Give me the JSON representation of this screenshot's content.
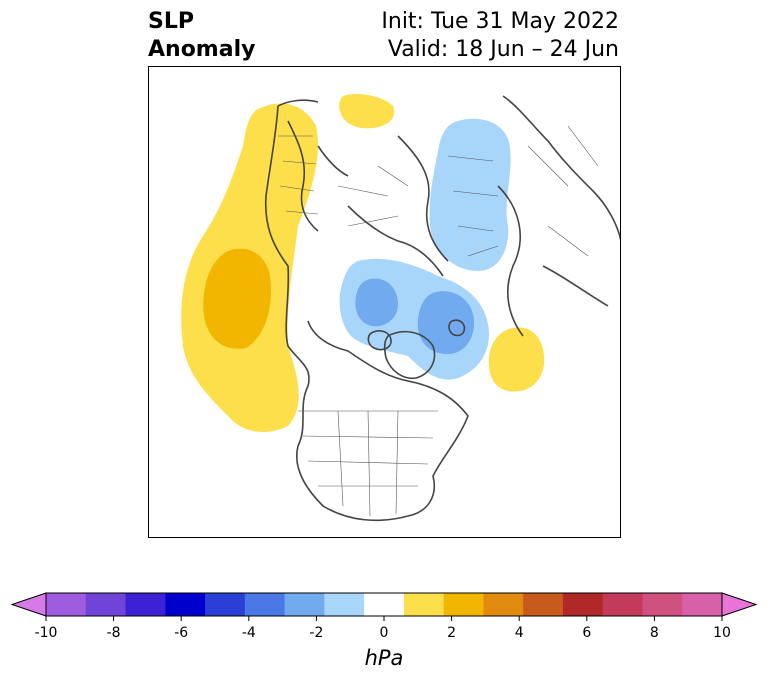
{
  "title": {
    "left_line1": "SLP",
    "left_line2": "Anomaly",
    "right_line1": "Init: Tue 31 May 2022",
    "right_line2": "Valid: 18 Jun – 24 Jun"
  },
  "colorbar": {
    "unit": "hPa",
    "ticks": [
      "-10",
      "-8",
      "-6",
      "-4",
      "-2",
      "0",
      "2",
      "4",
      "6",
      "8",
      "10"
    ],
    "colors": [
      "#d67ae8",
      "#a05ce0",
      "#7044d8",
      "#3c22d4",
      "#0000cc",
      "#2a3fd6",
      "#4a78e6",
      "#72aaf0",
      "#a8d6fa",
      "#ffffff",
      "#fcdf4a",
      "#f2b600",
      "#e08a10",
      "#c85a1c",
      "#b02828",
      "#c43a5a",
      "#d05080",
      "#d860a8",
      "#e874d8"
    ]
  },
  "map": {
    "anomaly_colors": {
      "pos_light": "#fcdf4a",
      "pos_mid": "#f2b600",
      "neg_light": "#a8d6fa",
      "neg_mid": "#72aaf0"
    }
  }
}
